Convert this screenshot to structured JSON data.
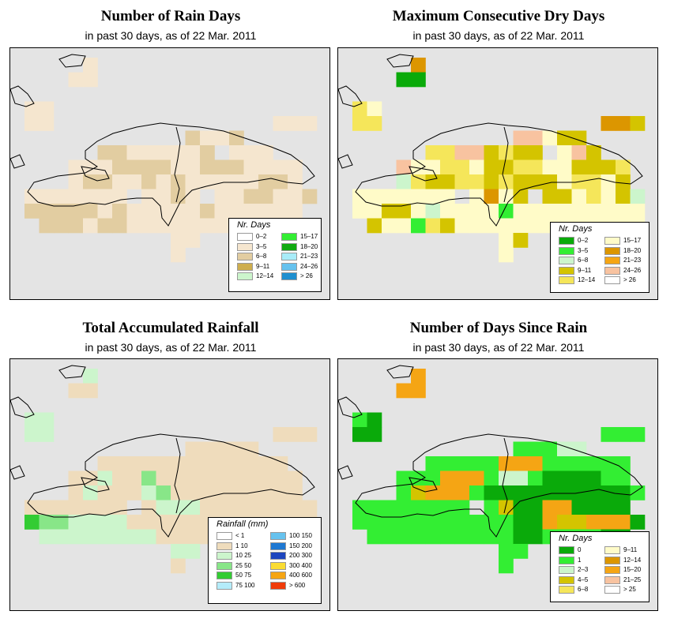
{
  "panels": [
    {
      "title": "Number of Rain Days",
      "subtitle": "in past 30 days, as of  22 Mar. 2011",
      "legend_title": "Nr. Days",
      "legend": [
        {
          "label": "0–2",
          "color": "#ffffff"
        },
        {
          "label": "3–5",
          "color": "#f5e6cf"
        },
        {
          "label": "6–8",
          "color": "#e2cda1"
        },
        {
          "label": "9–11",
          "color": "#ceae4e"
        },
        {
          "label": "12–14",
          "color": "#ccf5cc"
        },
        {
          "label": "15–17",
          "color": "#33ee33"
        },
        {
          "label": "18–20",
          "color": "#11aa11"
        },
        {
          "label": "21–23",
          "color": "#a8ecf8"
        },
        {
          "label": "24–26",
          "color": "#66c2ee"
        },
        {
          "label": "> 26",
          "color": "#1f8fcf"
        }
      ]
    },
    {
      "title": "Maximum Consecutive Dry Days",
      "subtitle": "in past 30 days, as of  22 Mar. 2011",
      "legend_title": "Nr. Days",
      "legend": [
        {
          "label": "0–2",
          "color": "#0aaa0a"
        },
        {
          "label": "3–5",
          "color": "#33ee33"
        },
        {
          "label": "6–8",
          "color": "#ccf5cc"
        },
        {
          "label": "9–11",
          "color": "#d4c400"
        },
        {
          "label": "12–14",
          "color": "#f5e65a"
        },
        {
          "label": "15–17",
          "color": "#fffbc8"
        },
        {
          "label": "18–20",
          "color": "#dc9600"
        },
        {
          "label": "21–23",
          "color": "#f5a514"
        },
        {
          "label": "24–26",
          "color": "#f8c3a0"
        },
        {
          "label": "> 26",
          "color": "#ffffff"
        }
      ]
    },
    {
      "title": "Total Accumulated Rainfall",
      "subtitle": "in past 30 days, as of  22 Mar. 2011",
      "legend_title": "Rainfall (mm)",
      "legend": [
        {
          "label": "< 1",
          "color": "#ffffff"
        },
        {
          "label": "1   10",
          "color": "#efdcbc"
        },
        {
          "label": "10   25",
          "color": "#ccf5cc"
        },
        {
          "label": "25   50",
          "color": "#88e688"
        },
        {
          "label": "50   75",
          "color": "#33cc33"
        },
        {
          "label": "75  100",
          "color": "#b4ecfa"
        },
        {
          "label": "100  150",
          "color": "#66c2ee"
        },
        {
          "label": "150  200",
          "color": "#1e78d2"
        },
        {
          "label": "200  300",
          "color": "#1e46be"
        },
        {
          "label": "300  400",
          "color": "#fadc32"
        },
        {
          "label": "400  600",
          "color": "#f5a514"
        },
        {
          "label": "> 600",
          "color": "#f03c0a"
        }
      ]
    },
    {
      "title": "Number of Days Since Rain",
      "subtitle": "in past 30 days, as of  22 Mar. 2011",
      "legend_title": "Nr. Days",
      "legend": [
        {
          "label": "0",
          "color": "#0aaa0a"
        },
        {
          "label": "1",
          "color": "#33ee33"
        },
        {
          "label": "2–3",
          "color": "#ccf5cc"
        },
        {
          "label": "4–5",
          "color": "#d4c400"
        },
        {
          "label": "6–8",
          "color": "#f5e65a"
        },
        {
          "label": "9–11",
          "color": "#fffbc8"
        },
        {
          "label": "12–14",
          "color": "#dc9600"
        },
        {
          "label": "15–20",
          "color": "#f5a514"
        },
        {
          "label": "21–25",
          "color": "#f8c3a0"
        },
        {
          "label": "> 25",
          "color": "#ffffff"
        }
      ]
    }
  ],
  "grid": {
    "cols": [
      "A",
      "B",
      "C",
      "D",
      "E",
      "F",
      "G",
      "H",
      "I",
      "J",
      "K",
      "L",
      "M",
      "N",
      "O",
      "P",
      "Q",
      "R",
      "S",
      "T"
    ],
    "rows": [
      "....1...............",
      "...11...............",
      "....................",
      "12..................",
      "12...............112",
      "...........3113.....",
      ".....22111133.111...",
      "...1123333112331111.",
      "...1221121213111331.",
      "1111111.1131.1132113",
      "1111212111113111111.",
      ".1111221111111111111",
      "..........11..1.....",
      "..........1........."
    ],
    "maps": [
      [
        "....3...............",
        "...33...............",
        "....................",
        "33..................",
        "33...............333",
        "...........6336.....",
        ".....66333336.333...",
        "...3336666336663333.",
        "...3663363633333663.",
        "3333333.3363.3366336",
        "6666636333336333333.",
        ".6663663333333333333",
        "..........33..3.....",
        "..........3........."
      ],
      [
        "....B...............",
        "...AA...............",
        "....................",
        "DE..................",
        "DD...............BBF",
        "...........HHEFF....",
        ".....DDHHFDFF.EHF...",
        "...HEEDDEFFDDEEFFFD.",
        "...GDFFDDFDFFFEDDEF.",
        "EEEEEEE.EBEF.FFEDEFG",
        "EEFFEGEEEECEEEEEEEEE",
        ".FEECDFEEEEEEEEEEEEE",
        "..........EF..G.....",
        "..........E........."
      ],
      [
        "....C...............",
        "...BB...............",
        "....................",
        "CC..................",
        "CC...............BBB",
        "...........BBBBB....",
        ".....BBBBBBBBBBBBB..",
        "...BBCBBDBBBBBBBBBB.",
        "...BCBBBCDBBBBBBBBB.",
        "BBBBBBB.BCCCBBBBBBBB",
        "EDDCCCCBBBBBBBBBBBBB",
        ".CCCCCCCCBBBBBBBBBBB",
        "..........CC..C.....",
        "..........B........."
      ],
      [
        "....G...............",
        "...HH...............",
        "....................",
        "BA..................",
        "AA...............BBB",
        "...........BBBCC....",
        ".....BBBBBHHHBBBBBB.",
        "...BBBHHHBCCBAAAABB.",
        "...BDHHHBAAAAAAAAAAB",
        "BBBBBBBB.BDAAHHAAAA.",
        "BBBBBBBBBBBAAHDDHHHA",
        ".BBBBBBBBBBAABBBBAA.",
        "..........BB..A.....",
        "..........B........."
      ]
    ],
    "palettes": [
      {
        "3": "#f5e6cf",
        "6": "#e2cda1",
        "9": "#ceae4e",
        "1": "#ffffff"
      },
      {
        "A": "#0aaa0a",
        "B": "#dc9600",
        "C": "#33ee33",
        "D": "#f5e65a",
        "E": "#fffbc8",
        "F": "#d4c400",
        "G": "#ccf5cc",
        "H": "#f8c3a0"
      },
      {
        "B": "#efdcbc",
        "C": "#ccf5cc",
        "D": "#88e688",
        "E": "#33cc33"
      },
      {
        "A": "#0aaa0a",
        "B": "#33ee33",
        "C": "#ccf5cc",
        "D": "#d4c400",
        "E": "#f5e65a",
        "F": "#fffbc8",
        "G": "#f5a514",
        "H": "#f5a514"
      }
    ]
  }
}
